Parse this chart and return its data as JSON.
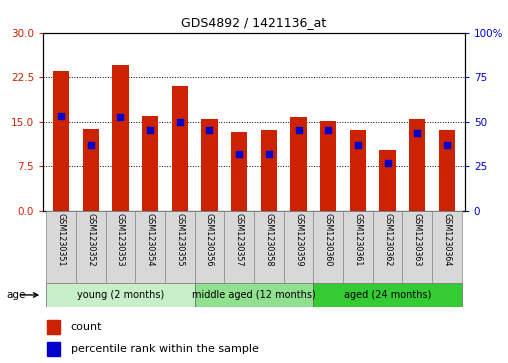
{
  "title": "GDS4892 / 1421136_at",
  "samples": [
    "GSM1230351",
    "GSM1230352",
    "GSM1230353",
    "GSM1230354",
    "GSM1230355",
    "GSM1230356",
    "GSM1230357",
    "GSM1230358",
    "GSM1230359",
    "GSM1230360",
    "GSM1230361",
    "GSM1230362",
    "GSM1230363",
    "GSM1230364"
  ],
  "count_values": [
    23.5,
    13.8,
    24.5,
    16.0,
    21.0,
    15.5,
    13.2,
    13.5,
    15.8,
    15.1,
    13.5,
    10.2,
    15.5,
    13.5
  ],
  "percentile_values": [
    16.0,
    11.0,
    15.8,
    13.5,
    15.0,
    13.5,
    9.5,
    9.5,
    13.5,
    13.5,
    11.0,
    8.0,
    13.0,
    11.0
  ],
  "left_yticks": [
    0,
    7.5,
    15,
    22.5,
    30
  ],
  "right_yticks": [
    0,
    25,
    50,
    75,
    100
  ],
  "right_yticklabels": [
    "0",
    "25",
    "50",
    "75",
    "100%"
  ],
  "ylim": [
    0,
    30
  ],
  "right_ylim": [
    0,
    100
  ],
  "bar_color": "#cc2200",
  "dot_color": "#0000cc",
  "bar_width": 0.55,
  "dot_size": 18,
  "groups": [
    {
      "label": "young (2 months)",
      "start": 0,
      "end": 4,
      "color": "#c8f0c8"
    },
    {
      "label": "middle aged (12 months)",
      "start": 5,
      "end": 8,
      "color": "#90e090"
    },
    {
      "label": "aged (24 months)",
      "start": 9,
      "end": 13,
      "color": "#33cc33"
    }
  ],
  "age_label": "age",
  "legend_count_label": "count",
  "legend_percentile_label": "percentile rank within the sample",
  "tick_color_left": "#cc2200",
  "tick_color_right": "#0000cc",
  "grid_color": "#000000",
  "background_plot": "#ffffff",
  "background_xtick": "#d8d8d8"
}
